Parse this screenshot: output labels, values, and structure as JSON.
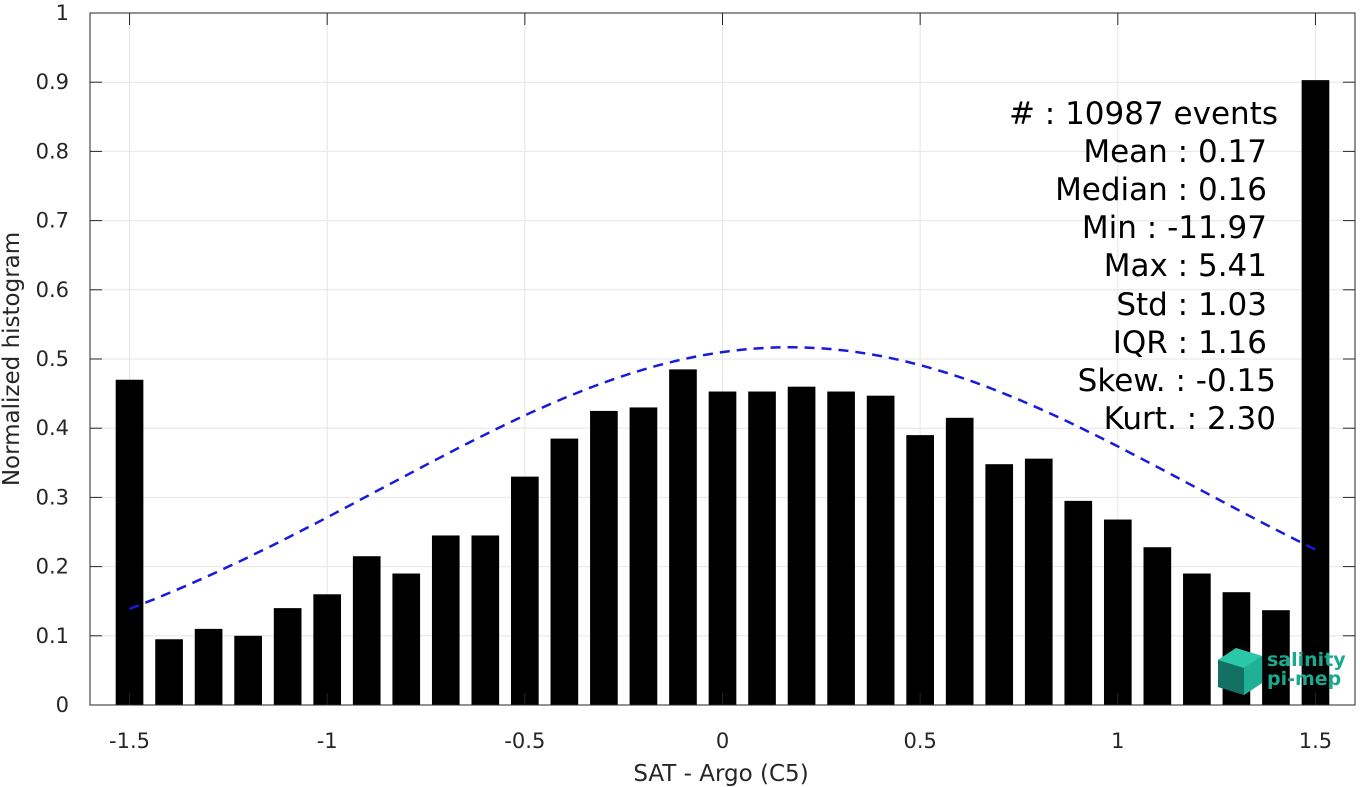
{
  "chart_data": {
    "type": "bar",
    "xlabel": "SAT - Argo (C5)",
    "ylabel": "Normalized histogram",
    "xlim": [
      -1.6,
      1.6
    ],
    "ylim": [
      0,
      1
    ],
    "xticks": [
      -1.5,
      -1,
      -0.5,
      0,
      0.5,
      1,
      1.5
    ],
    "xtick_labels": [
      "-1.5",
      "-1",
      "-0.5",
      "0",
      "0.5",
      "1",
      "1.5"
    ],
    "yticks": [
      0,
      0.1,
      0.2,
      0.3,
      0.4,
      0.5,
      0.6,
      0.7,
      0.8,
      0.9,
      1
    ],
    "ytick_labels": [
      "0",
      "0.1",
      "0.2",
      "0.3",
      "0.4",
      "0.5",
      "0.6",
      "0.7",
      "0.8",
      "0.9",
      "1"
    ],
    "grid": true,
    "bar_color": "#000000",
    "bar_width": 0.07,
    "x": [
      -1.5,
      -1.4,
      -1.3,
      -1.2,
      -1.1,
      -1.0,
      -0.9,
      -0.8,
      -0.7,
      -0.6,
      -0.5,
      -0.4,
      -0.3,
      -0.2,
      -0.1,
      0.0,
      0.1,
      0.2,
      0.3,
      0.4,
      0.5,
      0.6,
      0.7,
      0.8,
      0.9,
      1.0,
      1.1,
      1.2,
      1.3,
      1.4,
      1.5
    ],
    "values": [
      0.47,
      0.095,
      0.11,
      0.1,
      0.14,
      0.16,
      0.215,
      0.19,
      0.245,
      0.245,
      0.33,
      0.385,
      0.425,
      0.43,
      0.485,
      0.453,
      0.453,
      0.46,
      0.453,
      0.447,
      0.39,
      0.415,
      0.348,
      0.356,
      0.295,
      0.268,
      0.228,
      0.19,
      0.163,
      0.137,
      0.903
    ],
    "fit": {
      "style": "dashed",
      "color": "#1a1ad9",
      "mean": 0.17,
      "std": 1.03,
      "x_range": [
        -1.5,
        1.5
      ],
      "peak": 0.517
    },
    "stats": [
      "#  : 10987 events",
      "Mean : 0.17",
      "Median : 0.16",
      "Min : -11.97",
      "Max : 5.41",
      "Std : 1.03",
      "IQR : 1.16",
      "Skew. : -0.15",
      "Kurt. : 2.30"
    ],
    "logo": {
      "line1": "salinity",
      "line2": "pi-mep",
      "color": "#1aa88f"
    }
  }
}
